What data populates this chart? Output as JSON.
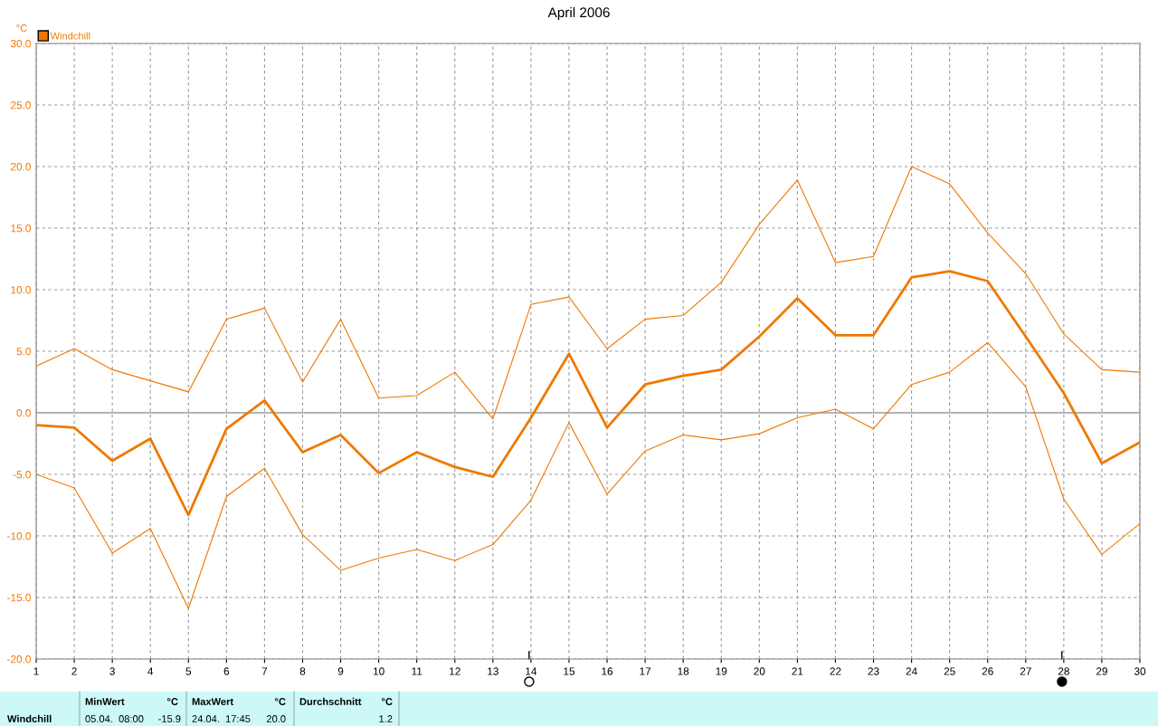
{
  "chart_data": {
    "type": "line",
    "title": "April 2006",
    "ylabel": "°C",
    "x": [
      1,
      2,
      3,
      4,
      5,
      6,
      7,
      8,
      9,
      10,
      11,
      12,
      13,
      14,
      15,
      16,
      17,
      18,
      19,
      20,
      21,
      22,
      23,
      24,
      25,
      26,
      27,
      28,
      29,
      30
    ],
    "series": [
      {
        "color": "#f07800",
        "values": [
          3.8,
          5.2,
          3.5,
          2.6,
          1.7,
          7.6,
          8.5,
          2.5,
          7.6,
          1.2,
          1.4,
          3.3,
          -0.5,
          8.8,
          9.4,
          5.2,
          7.6,
          7.9,
          10.6,
          15.3,
          18.9,
          12.2,
          12.7,
          20.0,
          18.6,
          14.6,
          11.3,
          6.4,
          3.5,
          3.3
        ]
      },
      {
        "name": "Windchill",
        "color": "#f07800",
        "values": [
          -1.0,
          -1.2,
          -3.9,
          -2.1,
          -8.3,
          -1.3,
          1.0,
          -3.2,
          -1.8,
          -4.9,
          -3.2,
          -4.4,
          -5.2,
          -0.4,
          4.8,
          -1.2,
          2.3,
          3.0,
          3.5,
          6.2,
          9.3,
          6.3,
          6.3,
          11.0,
          11.5,
          10.7,
          6.2,
          1.6,
          -4.1,
          -2.4
        ]
      },
      {
        "color": "#f07800",
        "values": [
          -5.0,
          -6.1,
          -11.4,
          -9.4,
          -15.9,
          -6.8,
          -4.5,
          -9.9,
          -12.8,
          -11.8,
          -11.1,
          -12.0,
          -10.7,
          -7.1,
          -0.8,
          -6.6,
          -3.1,
          -1.8,
          -2.2,
          -1.7,
          -0.4,
          0.3,
          -1.3,
          2.3,
          3.3,
          5.7,
          2.1,
          -7.0,
          -11.5,
          -9.0
        ]
      }
    ],
    "xlim": [
      1,
      30
    ],
    "xticks": [
      1,
      2,
      3,
      4,
      5,
      6,
      7,
      8,
      9,
      10,
      11,
      12,
      13,
      14,
      15,
      16,
      17,
      18,
      19,
      20,
      21,
      22,
      23,
      24,
      25,
      26,
      27,
      28,
      29,
      30
    ],
    "ylim": [
      -20,
      30
    ],
    "yticks": [
      {
        "value": -20,
        "label": "-20.0"
      },
      {
        "value": -15,
        "label": "-15.0"
      },
      {
        "value": -10,
        "label": "-10.0"
      },
      {
        "value": -5,
        "label": "-5.0"
      },
      {
        "value": 0,
        "label": "0.0"
      },
      {
        "value": 5,
        "label": "5.0"
      },
      {
        "value": 10,
        "label": "10.0"
      },
      {
        "value": 15,
        "label": "15.0"
      },
      {
        "value": 20,
        "label": "20.0"
      },
      {
        "value": 25,
        "label": "25.0"
      },
      {
        "value": 30,
        "label": "30.0"
      }
    ],
    "ref_lines": [
      {
        "axis": "y",
        "value": 0,
        "color": "#b4b4b4"
      }
    ],
    "grid": true,
    "legend": "top left",
    "line_style": "solid",
    "marker": "none",
    "annotations": [
      "Windchill",
      "MinWert",
      "°C",
      "05.04.  08:00",
      "-15.9",
      "MaxWert",
      "°C",
      "24.04.  17:45",
      "20.0",
      "Durchschnitt",
      "°C",
      "1.2"
    ]
  }
}
